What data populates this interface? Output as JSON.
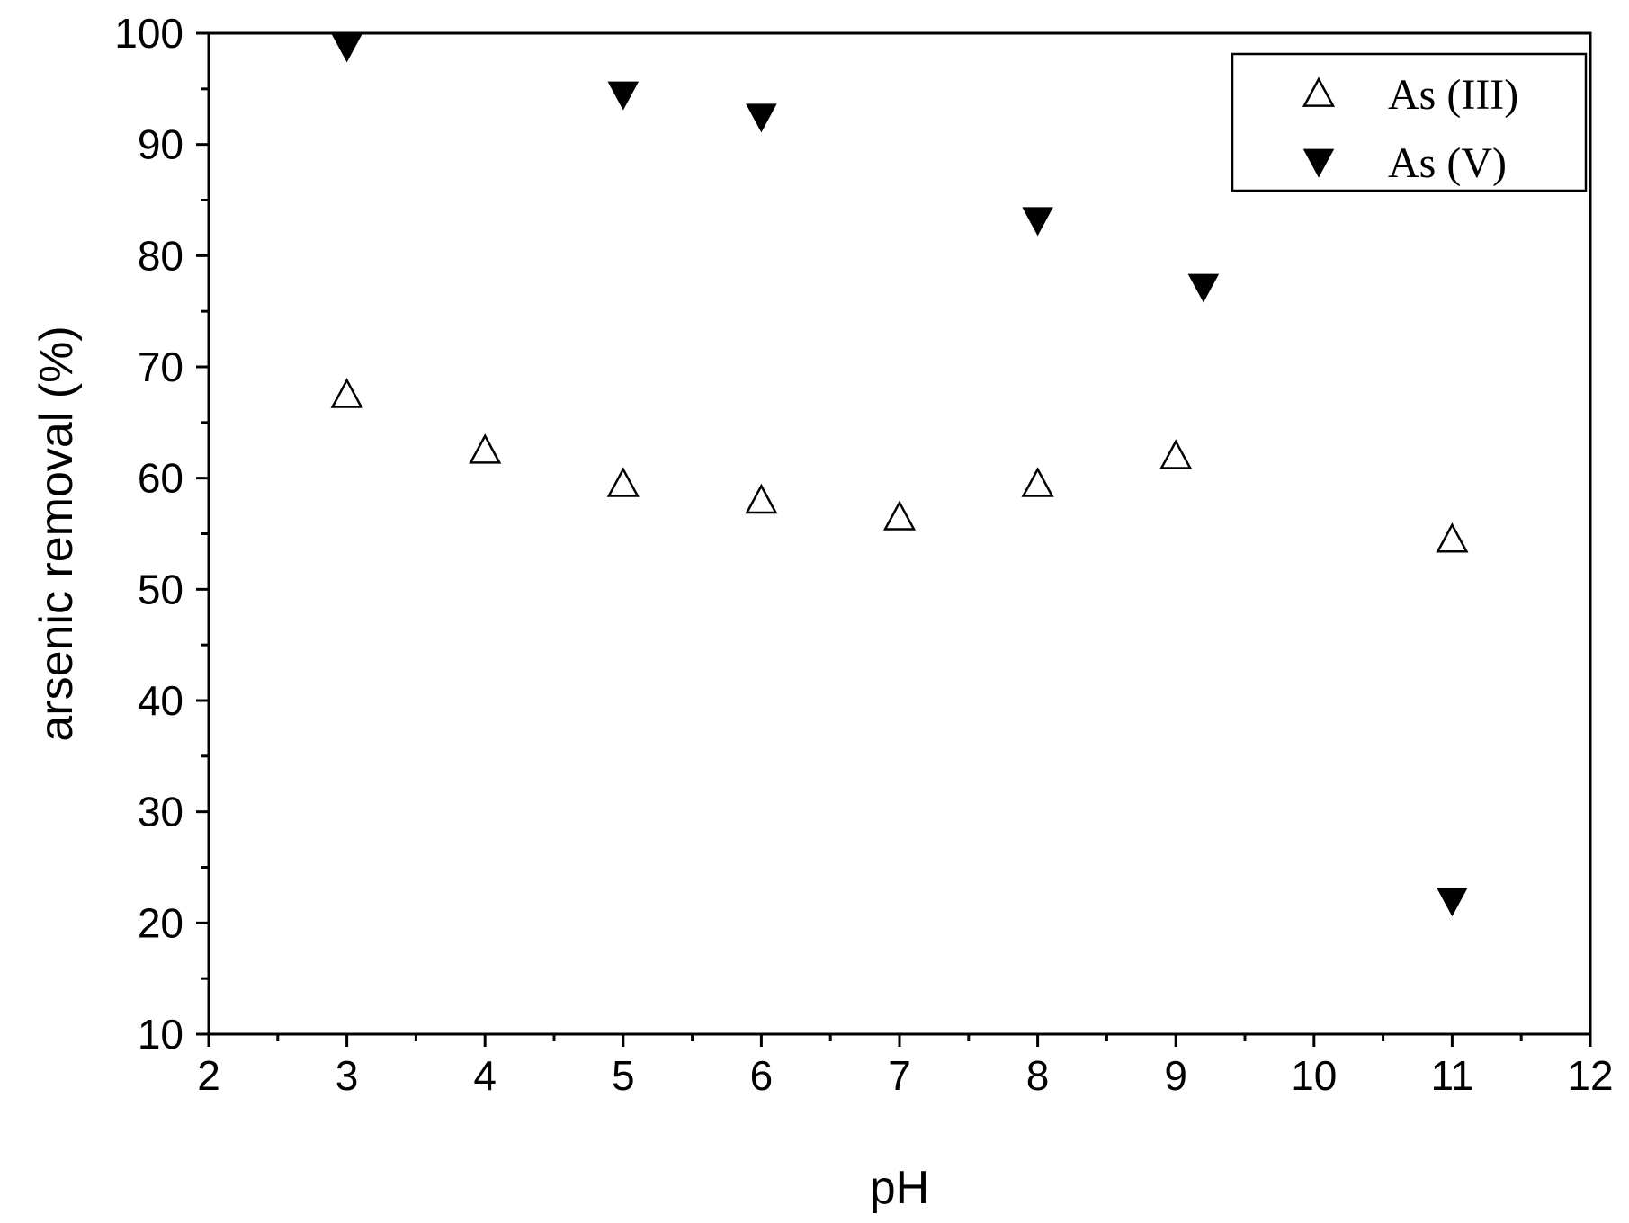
{
  "chart_data": {
    "type": "scatter",
    "xlabel": "pH",
    "ylabel": "arsenic removal (%)",
    "xlim": [
      2,
      12
    ],
    "ylim": [
      10,
      100
    ],
    "x_ticks": [
      2,
      3,
      4,
      5,
      6,
      7,
      8,
      9,
      10,
      11,
      12
    ],
    "y_ticks": [
      10,
      20,
      30,
      40,
      50,
      60,
      70,
      80,
      90,
      100
    ],
    "grid": false,
    "legend_position": "top-right",
    "series": [
      {
        "name": "As (III)",
        "marker": "open-triangle-up",
        "color": "#000000",
        "x": [
          3,
          4,
          5,
          6,
          7,
          8,
          9,
          11
        ],
        "y": [
          67.5,
          62.5,
          59.5,
          58.0,
          56.5,
          59.5,
          62.0,
          54.5
        ]
      },
      {
        "name": "As (V)",
        "marker": "filled-triangle-down",
        "color": "#000000",
        "x": [
          3,
          5,
          6,
          8,
          9.2,
          11
        ],
        "y": [
          98.8,
          94.5,
          92.5,
          83.2,
          77.2,
          22.0
        ]
      }
    ]
  }
}
